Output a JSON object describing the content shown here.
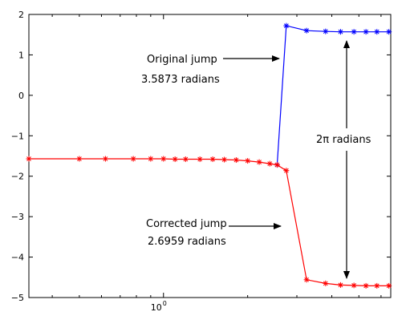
{
  "chart_data": {
    "type": "line",
    "title": "",
    "xlabel": "",
    "ylabel": "",
    "xscale": "log",
    "xlim": [
      0.33,
      6.5
    ],
    "ylim": [
      -5,
      2
    ],
    "x_tick_labels": [
      {
        "base": "10",
        "exp": "0",
        "value": 1
      }
    ],
    "y_ticks": [
      2,
      1,
      0,
      -1,
      -2,
      -3,
      -4,
      -5
    ],
    "y_tick_labels": [
      "2",
      "1",
      "0",
      "−1",
      "−2",
      "−3",
      "−4",
      "−5"
    ],
    "grid": false,
    "legend": "none",
    "series": [
      {
        "color": "#0000ff",
        "marker": "*",
        "x": [
          2.55,
          2.75,
          3.25,
          3.8,
          4.3,
          4.8,
          5.3,
          5.8,
          6.4
        ],
        "y": [
          -1.72,
          1.72,
          1.6,
          1.58,
          1.57,
          1.57,
          1.57,
          1.57,
          1.57
        ]
      },
      {
        "color": "#ff0000",
        "marker": "*",
        "x": [
          0.33,
          0.5,
          0.62,
          0.78,
          0.9,
          1.0,
          1.1,
          1.2,
          1.35,
          1.5,
          1.65,
          1.82,
          2.0,
          2.2,
          2.4,
          2.55,
          2.75,
          3.25,
          3.8,
          4.3,
          4.8,
          5.3,
          5.8,
          6.4
        ],
        "y": [
          -1.57,
          -1.57,
          -1.57,
          -1.57,
          -1.57,
          -1.57,
          -1.58,
          -1.58,
          -1.58,
          -1.58,
          -1.59,
          -1.6,
          -1.62,
          -1.65,
          -1.69,
          -1.72,
          -1.86,
          -4.56,
          -4.65,
          -4.69,
          -4.7,
          -4.71,
          -4.71,
          -4.71
        ]
      }
    ],
    "annotations": {
      "original_line1": "Original jump",
      "original_line2": "3.5873 radians",
      "corrected_line1": "Corrected jump",
      "corrected_line2": "2.6959 radians",
      "two_pi_label": "2π radians"
    }
  }
}
